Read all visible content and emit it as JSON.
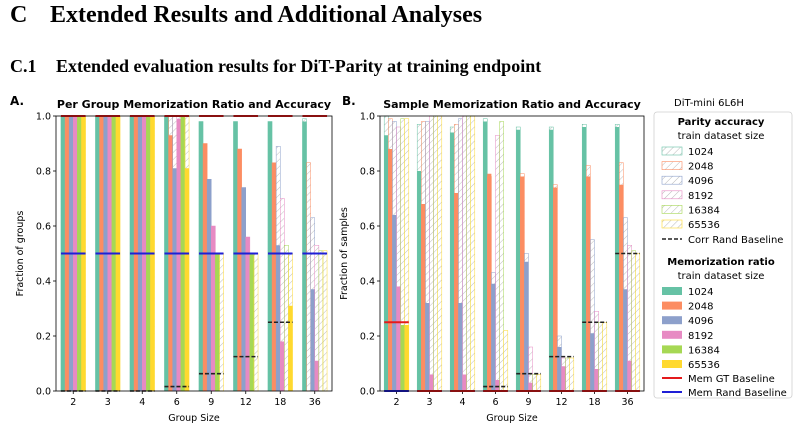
{
  "section": {
    "number": "C",
    "title": "Extended Results and Additional Analyses"
  },
  "subsection": {
    "number": "C.1",
    "title": "Extended evaluation results for DiT-Parity at training endpoint"
  },
  "figure": {
    "model_label": "DiT-mini 6L6H",
    "panel_a_letter": "A.",
    "panel_b_letter": "B.",
    "legend": {
      "parity_title": "Parity accuracy",
      "parity_subtitle": "train dataset size",
      "mem_title": "Memorization ratio",
      "mem_subtitle": "train dataset size",
      "sizes": [
        "1024",
        "2048",
        "4096",
        "8192",
        "16384",
        "65536"
      ],
      "corr_baseline": "Corr Rand Baseline",
      "gt_baseline": "Mem GT Baseline",
      "rand_baseline": "Mem Rand Baseline"
    },
    "colors": {
      "series": [
        "#66c2a5",
        "#fc8d62",
        "#8da0cb",
        "#e78ac3",
        "#a6d854",
        "#ffd92f"
      ],
      "gt_line": "#e41a1c",
      "rand_line": "#1f1fd6",
      "corr_line": "#222222"
    }
  },
  "chart_data": [
    {
      "type": "bar",
      "title": "Per Group Memorization Ratio and Accuracy",
      "xlabel": "Group Size",
      "ylabel": "Fraction of groups",
      "ylim": [
        0,
        1.0
      ],
      "yticks": [
        "0.0",
        "0.2",
        "0.4",
        "0.6",
        "0.8",
        "1.0"
      ],
      "categories": [
        "2",
        "3",
        "4",
        "6",
        "9",
        "12",
        "18",
        "36"
      ],
      "memorization_series": [
        {
          "name": "1024",
          "values": [
            1.0,
            1.0,
            1.0,
            1.0,
            0.98,
            0.98,
            0.98,
            0.98
          ]
        },
        {
          "name": "2048",
          "values": [
            1.0,
            1.0,
            1.0,
            0.93,
            0.9,
            0.88,
            0.83,
            0.0
          ]
        },
        {
          "name": "4096",
          "values": [
            1.0,
            1.0,
            1.0,
            0.81,
            0.77,
            0.74,
            0.53,
            0.37
          ]
        },
        {
          "name": "8192",
          "values": [
            1.0,
            1.0,
            1.0,
            0.99,
            0.6,
            0.56,
            0.18,
            0.11
          ]
        },
        {
          "name": "16384",
          "values": [
            1.0,
            1.0,
            1.0,
            1.0,
            0.5,
            0.5,
            0.0,
            0.0
          ]
        },
        {
          "name": "65536",
          "values": [
            1.0,
            1.0,
            1.0,
            0.81,
            0.0,
            0.0,
            0.31,
            0.0
          ]
        }
      ],
      "parity_accuracy_series": [
        {
          "name": "1024",
          "values": [
            1.0,
            1.0,
            1.0,
            1.0,
            0.98,
            0.98,
            0.98,
            0.99
          ]
        },
        {
          "name": "2048",
          "values": [
            1.0,
            1.0,
            1.0,
            1.0,
            0.9,
            0.88,
            0.83,
            0.83
          ]
        },
        {
          "name": "4096",
          "values": [
            1.0,
            1.0,
            1.0,
            1.0,
            0.77,
            0.74,
            0.89,
            0.63
          ]
        },
        {
          "name": "8192",
          "values": [
            1.0,
            1.0,
            1.0,
            1.0,
            0.6,
            0.56,
            0.7,
            0.53
          ]
        },
        {
          "name": "16384",
          "values": [
            1.0,
            1.0,
            1.0,
            1.0,
            0.5,
            0.5,
            0.53,
            0.51
          ]
        },
        {
          "name": "65536",
          "values": [
            1.0,
            1.0,
            1.0,
            1.0,
            0.5,
            0.5,
            0.5,
            0.51
          ]
        }
      ],
      "mem_gt_baseline": [
        1.0,
        1.0,
        1.0,
        1.0,
        1.0,
        1.0,
        1.0,
        1.0
      ],
      "mem_rand_baseline": [
        0.5,
        0.5,
        0.5,
        0.5,
        0.5,
        0.5,
        0.5,
        0.5
      ],
      "corr_rand_baseline": [
        0.0,
        0.0,
        0.0,
        0.016,
        0.063,
        0.125,
        0.25,
        0.5
      ]
    },
    {
      "type": "bar",
      "title": "Sample Memorization Ratio and Accuracy",
      "xlabel": "Group Size",
      "ylabel": "Fraction of samples",
      "ylim": [
        0,
        1.0
      ],
      "yticks": [
        "0.0",
        "0.2",
        "0.4",
        "0.6",
        "0.8",
        "1.0"
      ],
      "categories": [
        "2",
        "3",
        "4",
        "6",
        "9",
        "12",
        "18",
        "36"
      ],
      "memorization_series": [
        {
          "name": "1024",
          "values": [
            0.93,
            0.8,
            0.94,
            0.98,
            0.95,
            0.95,
            0.96,
            0.96
          ]
        },
        {
          "name": "2048",
          "values": [
            0.88,
            0.68,
            0.72,
            0.79,
            0.78,
            0.74,
            0.78,
            0.75
          ]
        },
        {
          "name": "4096",
          "values": [
            0.64,
            0.32,
            0.32,
            0.39,
            0.47,
            0.16,
            0.21,
            0.37
          ]
        },
        {
          "name": "8192",
          "values": [
            0.38,
            0.06,
            0.06,
            0.04,
            0.03,
            0.09,
            0.08,
            0.11
          ]
        },
        {
          "name": "16384",
          "values": [
            0.24,
            0.0,
            0.0,
            0.0,
            0.0,
            0.0,
            0.0,
            0.0
          ]
        },
        {
          "name": "65536",
          "values": [
            0.24,
            0.0,
            0.0,
            0.0,
            0.0,
            0.0,
            0.0,
            0.0
          ]
        }
      ],
      "parity_accuracy_series": [
        {
          "name": "1024",
          "values": [
            1.0,
            0.97,
            0.96,
            0.99,
            0.96,
            0.96,
            0.97,
            0.97
          ]
        },
        {
          "name": "2048",
          "values": [
            0.99,
            0.98,
            0.97,
            0.78,
            0.79,
            0.75,
            0.82,
            0.83
          ]
        },
        {
          "name": "4096",
          "values": [
            0.98,
            0.98,
            0.99,
            0.43,
            0.5,
            0.2,
            0.55,
            0.63
          ]
        },
        {
          "name": "8192",
          "values": [
            0.96,
            1.0,
            1.0,
            0.93,
            0.16,
            0.12,
            0.29,
            0.53
          ]
        },
        {
          "name": "16384",
          "values": [
            0.99,
            1.0,
            1.0,
            0.98,
            0.06,
            0.12,
            0.25,
            0.51
          ]
        },
        {
          "name": "65536",
          "values": [
            0.99,
            1.0,
            1.0,
            0.22,
            0.06,
            0.12,
            0.25,
            0.5
          ]
        }
      ],
      "mem_gt_baseline": [
        0.25,
        0.0,
        0.0,
        0.0,
        0.0,
        0.0,
        0.0,
        0.0
      ],
      "mem_rand_baseline": [
        0.0,
        0.0,
        0.0,
        0.0,
        0.0,
        0.0,
        0.0,
        0.0
      ],
      "corr_rand_baseline": [
        0.0,
        0.0,
        0.0,
        0.016,
        0.063,
        0.125,
        0.25,
        0.5
      ]
    }
  ]
}
